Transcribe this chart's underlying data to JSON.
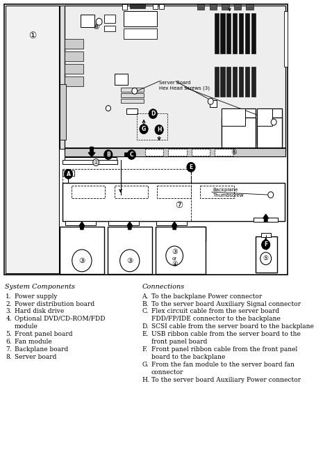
{
  "bg_color": "#ffffff",
  "fig_width": 4.78,
  "fig_height": 6.5,
  "dpi": 100,
  "system_components_header": "System Components",
  "system_components": [
    [
      "1.",
      "Power supply"
    ],
    [
      "2.",
      "Power distribution board"
    ],
    [
      "3.",
      "Hard disk drive"
    ],
    [
      "4.",
      "Optional DVD/CD-ROM/FDD\nmodule"
    ],
    [
      "5.",
      "Front panel board"
    ],
    [
      "6.",
      "Fan module"
    ],
    [
      "7.",
      "Backplane board"
    ],
    [
      "8.",
      "Server board"
    ]
  ],
  "connections_header": "Connections",
  "connections": [
    [
      "A.",
      "To the backplane Power connector"
    ],
    [
      "B.",
      "To the server board Auxiliary Signal connector"
    ],
    [
      "C.",
      "Flex circuit cable from the server board\nFDD/FP/IDE connector to the backplane"
    ],
    [
      "D.",
      "SCSI cable from the server board to the backplane"
    ],
    [
      "E.",
      "USB ribbon cable from the server board to the\nfront panel board"
    ],
    [
      "F.",
      "Front panel ribbon cable from the front panel\nboard to the backplane"
    ],
    [
      "G.",
      "From the fan module to the server board fan\nconnector"
    ],
    [
      "H.",
      "To the server board Auxiliary Power connector"
    ]
  ]
}
